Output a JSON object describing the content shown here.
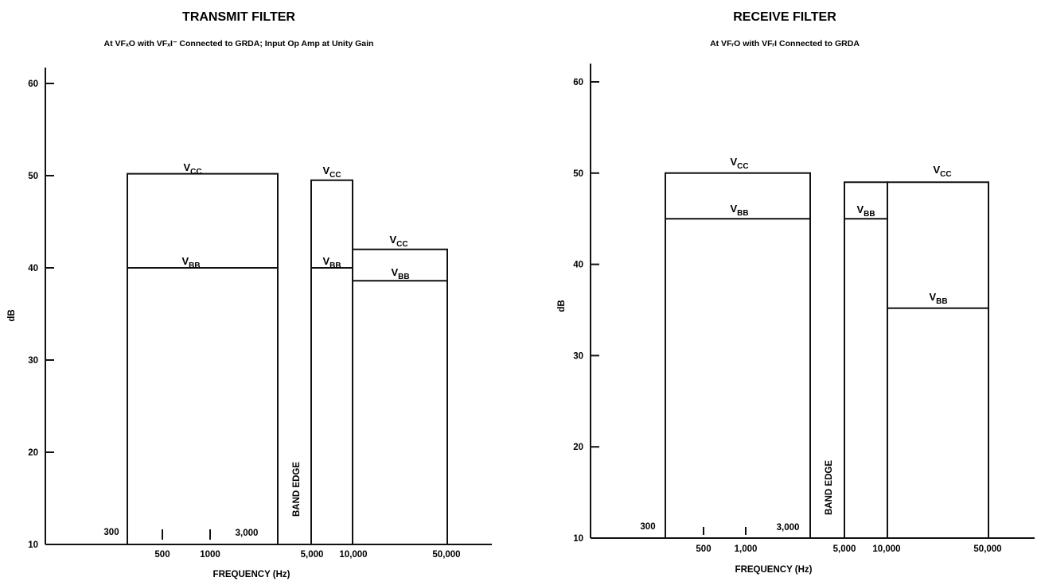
{
  "chart_data": [
    {
      "type": "area",
      "title": "TRANSMIT FILTER",
      "subtitle": "At VFₓO with VFₓI⁻ Connected to GRDA; Input Op Amp at Unity Gain",
      "xlabel": "FREQUENCY (Hz)",
      "ylabel": "dB",
      "ylim": [
        10,
        60
      ],
      "yticks": [
        10,
        20,
        30,
        40,
        50,
        60
      ],
      "x_tick_labels": {
        "p300": "300",
        "p500": "500",
        "p1000": "1000",
        "p3000": "3,000",
        "p5000": "5,000",
        "p10000": "10,000",
        "p50000": "50,000"
      },
      "band_edge_label": "BAND EDGE",
      "series": [
        {
          "name": "VCC",
          "segments": [
            {
              "x_from": 300,
              "x_to": 3000,
              "y": 50.2
            },
            {
              "x_from": 4600,
              "x_to": 10000,
              "y": 49.5
            },
            {
              "x_from": 10000,
              "x_to": 50000,
              "y": 42
            }
          ]
        },
        {
          "name": "VBB",
          "segments": [
            {
              "x_from": 300,
              "x_to": 3000,
              "y": 40
            },
            {
              "x_from": 4600,
              "x_to": 10000,
              "y": 40
            },
            {
              "x_from": 10000,
              "x_to": 50000,
              "y": 38.6
            }
          ]
        }
      ]
    },
    {
      "type": "area",
      "title": "RECEIVE FILTER",
      "subtitle": "At VFᵣO with VFᵣI Connected to GRDA",
      "xlabel": "FREQUENCY (Hz)",
      "ylabel": "dB",
      "ylim": [
        10,
        60
      ],
      "yticks": [
        10,
        20,
        30,
        40,
        50,
        60
      ],
      "x_tick_labels": {
        "p300": "300",
        "p500": "500",
        "p1000": "1,000",
        "p3000": "3,000",
        "p5000": "5,000",
        "p10000": "10,000",
        "p50000": "50,000"
      },
      "band_edge_label": "BAND EDGE",
      "series": [
        {
          "name": "VCC",
          "segments": [
            {
              "x_from": 300,
              "x_to": 3000,
              "y": 50
            },
            {
              "x_from": 4600,
              "x_to": 10000,
              "y": 49
            },
            {
              "x_from": 10000,
              "x_to": 50000,
              "y": 49
            }
          ]
        },
        {
          "name": "VBB",
          "segments": [
            {
              "x_from": 300,
              "x_to": 3000,
              "y": 45
            },
            {
              "x_from": 4600,
              "x_to": 10000,
              "y": 45
            },
            {
              "x_from": 10000,
              "x_to": 50000,
              "y": 35.2
            }
          ]
        }
      ]
    }
  ]
}
